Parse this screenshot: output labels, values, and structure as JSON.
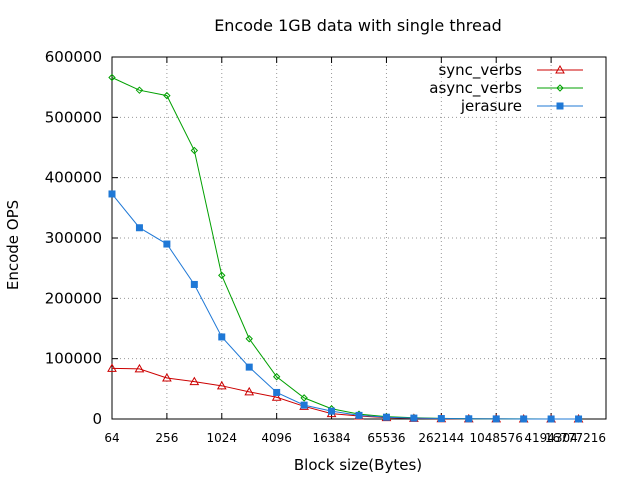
{
  "chart_data": {
    "type": "line",
    "title": "Encode 1GB data with single thread",
    "xlabel": "Block size(Bytes)",
    "ylabel": "Encode OPS",
    "x_scale": "log2",
    "xlim": [
      64,
      16777216
    ],
    "ylim": [
      0,
      600000
    ],
    "grid": true,
    "legend_position": "top-right",
    "x_ticks": [
      64,
      256,
      1024,
      4096,
      16384,
      65536,
      262144,
      1048576,
      4194304,
      16777216
    ],
    "y_ticks": [
      0,
      100000,
      200000,
      300000,
      400000,
      500000,
      600000
    ],
    "x": [
      64,
      128,
      256,
      512,
      1024,
      2048,
      4096,
      8192,
      16384,
      32768,
      65536,
      131072,
      262144,
      524288,
      1048576,
      2097152,
      4194304,
      8388608
    ],
    "series": [
      {
        "name": "sync_verbs",
        "color": "#cc0000",
        "marker": "triangle",
        "values": [
          84000,
          83000,
          68000,
          62000,
          55000,
          45000,
          36000,
          21000,
          9000,
          5000,
          2200,
          1000,
          500,
          250,
          120,
          60,
          30,
          15
        ]
      },
      {
        "name": "async_verbs",
        "color": "#00a000",
        "marker": "diamond",
        "values": [
          566000,
          545000,
          536000,
          445000,
          238000,
          133000,
          70000,
          35000,
          17000,
          8000,
          4000,
          2000,
          1000,
          500,
          250,
          120,
          60,
          30
        ]
      },
      {
        "name": "jerasure",
        "color": "#1f78d6",
        "marker": "square",
        "values": [
          373000,
          317000,
          290000,
          223000,
          136000,
          86000,
          44000,
          23000,
          13000,
          6000,
          3000,
          1500,
          750,
          380,
          190,
          90,
          45,
          25
        ]
      }
    ]
  }
}
